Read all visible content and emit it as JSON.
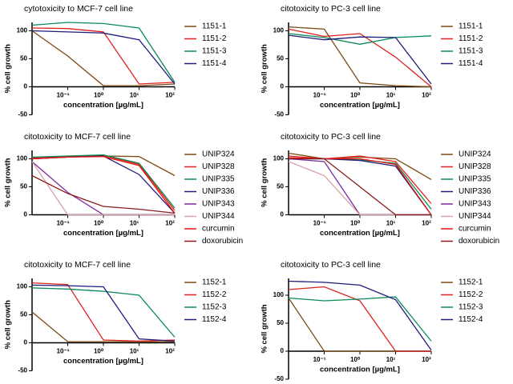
{
  "chart_data": [
    {
      "type": "line",
      "title": "cytotoxicity to MCF-7 cell line",
      "x_label": "concentration [µg/mL]",
      "y_label": "% cell growth",
      "xscale": "log",
      "x": [
        0.01,
        0.1,
        1,
        10,
        100
      ],
      "xlim": [
        0.01,
        100
      ],
      "xticks": [
        {
          "value": 0.1,
          "label": "10⁻¹"
        },
        {
          "value": 1,
          "label": "10⁰"
        },
        {
          "value": 10,
          "label": "10¹"
        },
        {
          "value": 100,
          "label": "10²"
        }
      ],
      "ylim": [
        -50,
        115
      ],
      "yticks": [
        -50,
        0,
        50,
        100
      ],
      "series": [
        {
          "name": "1151-1",
          "color": "#7b4a12",
          "values": [
            100,
            55,
            2,
            2,
            5
          ]
        },
        {
          "name": "1151-2",
          "color": "#e0201b",
          "values": [
            105,
            104,
            98,
            5,
            8
          ]
        },
        {
          "name": "1151-3",
          "color": "#0a8a5a",
          "values": [
            110,
            115,
            113,
            105,
            8
          ]
        },
        {
          "name": "1151-4",
          "color": "#1c1c7a",
          "values": [
            100,
            98,
            96,
            84,
            5
          ]
        }
      ]
    },
    {
      "type": "line",
      "title": "citotoxicity to PC-3 cell line",
      "x_label": "concentration [µg/mL]",
      "y_label": "% cell growth",
      "xscale": "log",
      "x": [
        0.01,
        0.1,
        1,
        10,
        100
      ],
      "xlim": [
        0.01,
        100
      ],
      "xticks": [
        {
          "value": 0.1,
          "label": "10⁻¹"
        },
        {
          "value": 1,
          "label": "10⁰"
        },
        {
          "value": 10,
          "label": "10¹"
        },
        {
          "value": 100,
          "label": "10²"
        }
      ],
      "ylim": [
        -50,
        115
      ],
      "yticks": [
        -50,
        0,
        50,
        100
      ],
      "series": [
        {
          "name": "1151-1",
          "color": "#7b4a12",
          "values": [
            107,
            103,
            7,
            2,
            0
          ]
        },
        {
          "name": "1151-2",
          "color": "#e0201b",
          "values": [
            103,
            90,
            95,
            53,
            0
          ]
        },
        {
          "name": "1151-3",
          "color": "#0a8a5a",
          "values": [
            95,
            88,
            76,
            88,
            91
          ]
        },
        {
          "name": "1151-4",
          "color": "#1c1c7a",
          "values": [
            92,
            84,
            89,
            88,
            5
          ]
        }
      ]
    },
    {
      "type": "line",
      "title": "citotoxicity to MCF-7 cell line",
      "x_label": "concentration [µg/mL]",
      "y_label": "% cell growth",
      "xscale": "log",
      "x": [
        0.01,
        0.1,
        1,
        10,
        100
      ],
      "xlim": [
        0.01,
        100
      ],
      "xticks": [
        {
          "value": 0.1,
          "label": "10⁻¹"
        },
        {
          "value": 1,
          "label": "10⁰"
        },
        {
          "value": 10,
          "label": "10¹"
        },
        {
          "value": 100,
          "label": "10²"
        }
      ],
      "ylim": [
        0,
        115
      ],
      "yticks": [
        0,
        50,
        100
      ],
      "series": [
        {
          "name": "UNIP324",
          "color": "#7b4a12",
          "values": [
            100,
            103,
            105,
            104,
            70
          ]
        },
        {
          "name": "UNIP328",
          "color": "#e0201b",
          "values": [
            102,
            104,
            106,
            90,
            8
          ]
        },
        {
          "name": "UNIP335",
          "color": "#0a8a5a",
          "values": [
            103,
            105,
            107,
            92,
            12
          ]
        },
        {
          "name": "UNIP336",
          "color": "#1c1c7a",
          "values": [
            100,
            103,
            105,
            72,
            3
          ]
        },
        {
          "name": "UNIP343",
          "color": "#7b2a9e",
          "values": [
            95,
            40,
            0,
            0,
            0
          ]
        },
        {
          "name": "UNIP344",
          "color": "#d8a0a8",
          "values": [
            95,
            0,
            0,
            0,
            0
          ]
        },
        {
          "name": "curcumin",
          "color": "#e8120c",
          "values": [
            100,
            103,
            104,
            88,
            3
          ]
        },
        {
          "name": "doxorubicin",
          "color": "#8b1a1a",
          "values": [
            70,
            38,
            15,
            10,
            3
          ]
        }
      ]
    },
    {
      "type": "line",
      "title": "citotoxicity to PC-3 cell line",
      "x_label": "concentration [µg/mL]",
      "y_label": "% cell growth",
      "xscale": "log",
      "x": [
        0.01,
        0.1,
        1,
        10,
        100
      ],
      "xlim": [
        0.01,
        100
      ],
      "xticks": [
        {
          "value": 0.1,
          "label": "10⁻¹"
        },
        {
          "value": 1,
          "label": "10⁰"
        },
        {
          "value": 10,
          "label": "10¹"
        },
        {
          "value": 100,
          "label": "10²"
        }
      ],
      "ylim": [
        0,
        115
      ],
      "yticks": [
        0,
        50,
        100
      ],
      "series": [
        {
          "name": "UNIP324",
          "color": "#7b4a12",
          "values": [
            110,
            100,
            103,
            100,
            63
          ]
        },
        {
          "name": "UNIP328",
          "color": "#e0201b",
          "values": [
            105,
            100,
            105,
            95,
            20
          ]
        },
        {
          "name": "UNIP335",
          "color": "#0a8a5a",
          "values": [
            100,
            100,
            98,
            92,
            10
          ]
        },
        {
          "name": "UNIP336",
          "color": "#1c1c7a",
          "values": [
            100,
            100,
            97,
            87,
            0
          ]
        },
        {
          "name": "UNIP343",
          "color": "#7b2a9e",
          "values": [
            100,
            95,
            0,
            0,
            0
          ]
        },
        {
          "name": "UNIP344",
          "color": "#d8a0a8",
          "values": [
            95,
            70,
            0,
            0,
            0
          ]
        },
        {
          "name": "curcumin",
          "color": "#e8120c",
          "values": [
            102,
            100,
            100,
            90,
            0
          ]
        },
        {
          "name": "doxorubicin",
          "color": "#8b1a1a",
          "values": [
            100,
            100,
            50,
            0,
            0
          ]
        }
      ]
    },
    {
      "type": "line",
      "title": "citotoxicity to MCF-7 cell line",
      "x_label": "concentration [µg/mL]",
      "y_label": "% cell growth",
      "xscale": "log",
      "x": [
        0.01,
        0.1,
        1,
        10,
        100
      ],
      "xlim": [
        0.01,
        100
      ],
      "xticks": [
        {
          "value": 0.1,
          "label": "10⁻¹"
        },
        {
          "value": 1,
          "label": "10⁰"
        },
        {
          "value": 10,
          "label": "10¹"
        },
        {
          "value": 100,
          "label": "10²"
        }
      ],
      "ylim": [
        -50,
        115
      ],
      "yticks": [
        -50,
        0,
        50,
        100
      ],
      "series": [
        {
          "name": "1152-1",
          "color": "#7b4a12",
          "values": [
            55,
            2,
            2,
            2,
            2
          ]
        },
        {
          "name": "1152-2",
          "color": "#e0201b",
          "values": [
            107,
            104,
            5,
            3,
            5
          ]
        },
        {
          "name": "1152-3",
          "color": "#0a8a5a",
          "values": [
            98,
            96,
            92,
            85,
            10
          ]
        },
        {
          "name": "1152-4",
          "color": "#1c1c7a",
          "values": [
            103,
            102,
            100,
            7,
            3
          ]
        }
      ]
    },
    {
      "type": "line",
      "title": "citotoxicity to PC-3 cell line",
      "x_label": "concentration [µg/mL]",
      "y_label": "% cell growth",
      "xscale": "log",
      "x": [
        0.01,
        0.1,
        1,
        10,
        100
      ],
      "xlim": [
        0.01,
        100
      ],
      "xticks": [
        {
          "value": 0.1,
          "label": "10⁻¹"
        },
        {
          "value": 1,
          "label": "10⁰"
        },
        {
          "value": 10,
          "label": "10¹"
        },
        {
          "value": 100,
          "label": "10²"
        }
      ],
      "ylim": [
        -50,
        130
      ],
      "yticks": [
        -50,
        0,
        50,
        100
      ],
      "series": [
        {
          "name": "1152-1",
          "color": "#7b4a12",
          "values": [
            95,
            0,
            0,
            0,
            0
          ]
        },
        {
          "name": "1152-2",
          "color": "#e0201b",
          "values": [
            110,
            115,
            90,
            0,
            0
          ]
        },
        {
          "name": "1152-3",
          "color": "#0a8a5a",
          "values": [
            95,
            90,
            93,
            97,
            18
          ]
        },
        {
          "name": "1152-4",
          "color": "#1c1c7a",
          "values": [
            125,
            123,
            118,
            92,
            2
          ]
        }
      ]
    }
  ]
}
